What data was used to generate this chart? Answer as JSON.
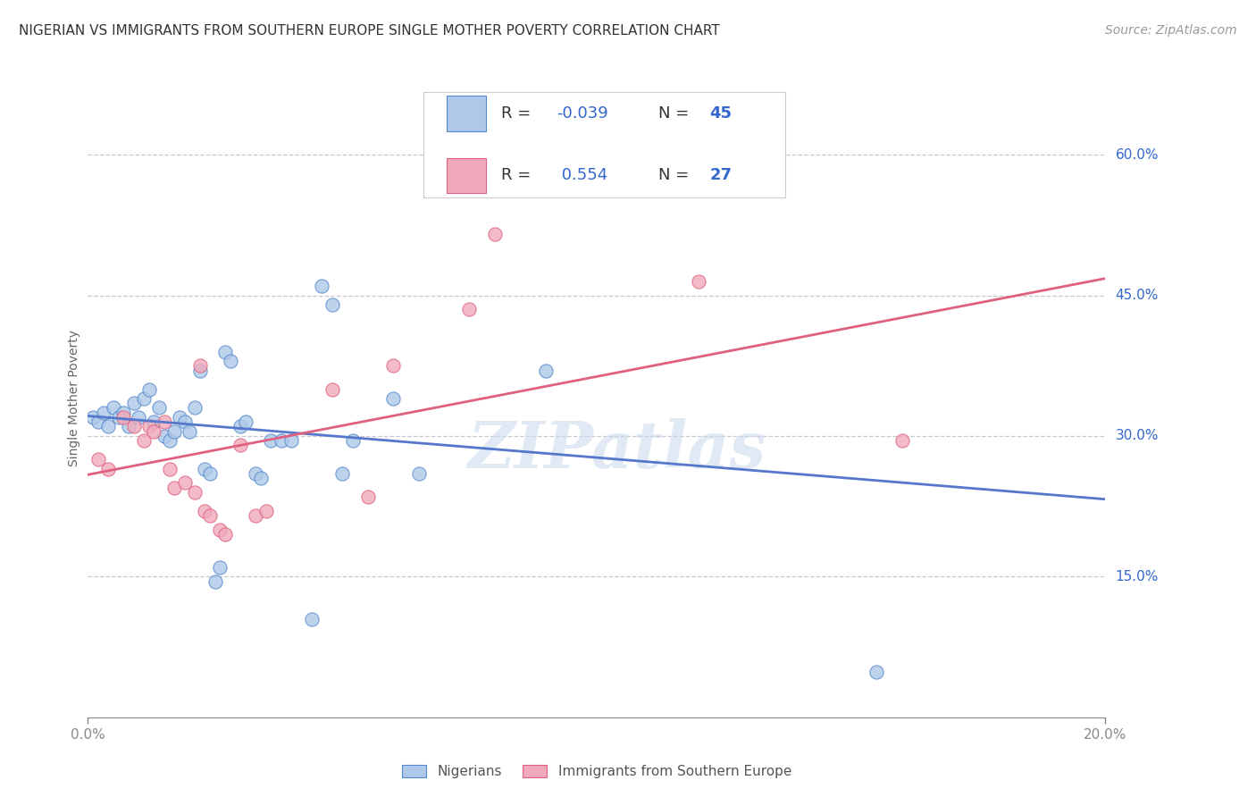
{
  "title": "NIGERIAN VS IMMIGRANTS FROM SOUTHERN EUROPE SINGLE MOTHER POVERTY CORRELATION CHART",
  "source": "Source: ZipAtlas.com",
  "ylabel": "Single Mother Poverty",
  "ytick_vals": [
    0.15,
    0.3,
    0.45,
    0.6
  ],
  "ytick_labels": [
    "15.0%",
    "30.0%",
    "45.0%",
    "60.0%"
  ],
  "xtick_vals": [
    0.0,
    0.2
  ],
  "xtick_labels": [
    "0.0%",
    "20.0%"
  ],
  "xlim": [
    0.0,
    0.2
  ],
  "ylim": [
    0.0,
    0.68
  ],
  "blue_R": "-0.039",
  "blue_N": "45",
  "pink_R": "0.554",
  "pink_N": "27",
  "legend_label1": "Nigerians",
  "legend_label2": "Immigrants from Southern Europe",
  "watermark": "ZIPatlas",
  "blue_fill": "#adc8e8",
  "pink_fill": "#f0aabb",
  "blue_edge": "#5588cc",
  "pink_edge": "#e06080",
  "line_blue": "#5577cc",
  "line_pink": "#e06080",
  "blue_scatter": [
    [
      0.001,
      0.32
    ],
    [
      0.002,
      0.315
    ],
    [
      0.003,
      0.325
    ],
    [
      0.004,
      0.31
    ],
    [
      0.005,
      0.33
    ],
    [
      0.006,
      0.32
    ],
    [
      0.007,
      0.325
    ],
    [
      0.008,
      0.31
    ],
    [
      0.009,
      0.335
    ],
    [
      0.01,
      0.32
    ],
    [
      0.011,
      0.34
    ],
    [
      0.012,
      0.35
    ],
    [
      0.013,
      0.315
    ],
    [
      0.014,
      0.33
    ],
    [
      0.015,
      0.3
    ],
    [
      0.016,
      0.295
    ],
    [
      0.017,
      0.305
    ],
    [
      0.018,
      0.32
    ],
    [
      0.019,
      0.315
    ],
    [
      0.02,
      0.305
    ],
    [
      0.021,
      0.33
    ],
    [
      0.022,
      0.37
    ],
    [
      0.023,
      0.265
    ],
    [
      0.024,
      0.26
    ],
    [
      0.025,
      0.145
    ],
    [
      0.026,
      0.16
    ],
    [
      0.027,
      0.39
    ],
    [
      0.028,
      0.38
    ],
    [
      0.03,
      0.31
    ],
    [
      0.031,
      0.315
    ],
    [
      0.033,
      0.26
    ],
    [
      0.034,
      0.255
    ],
    [
      0.036,
      0.295
    ],
    [
      0.038,
      0.295
    ],
    [
      0.04,
      0.295
    ],
    [
      0.044,
      0.105
    ],
    [
      0.046,
      0.46
    ],
    [
      0.048,
      0.44
    ],
    [
      0.05,
      0.26
    ],
    [
      0.052,
      0.295
    ],
    [
      0.06,
      0.34
    ],
    [
      0.065,
      0.26
    ],
    [
      0.09,
      0.37
    ],
    [
      0.095,
      0.575
    ],
    [
      0.155,
      0.048
    ]
  ],
  "pink_scatter": [
    [
      0.002,
      0.275
    ],
    [
      0.004,
      0.265
    ],
    [
      0.007,
      0.32
    ],
    [
      0.009,
      0.31
    ],
    [
      0.011,
      0.295
    ],
    [
      0.012,
      0.31
    ],
    [
      0.013,
      0.305
    ],
    [
      0.015,
      0.315
    ],
    [
      0.016,
      0.265
    ],
    [
      0.017,
      0.245
    ],
    [
      0.019,
      0.25
    ],
    [
      0.021,
      0.24
    ],
    [
      0.022,
      0.375
    ],
    [
      0.023,
      0.22
    ],
    [
      0.024,
      0.215
    ],
    [
      0.026,
      0.2
    ],
    [
      0.027,
      0.195
    ],
    [
      0.03,
      0.29
    ],
    [
      0.033,
      0.215
    ],
    [
      0.035,
      0.22
    ],
    [
      0.048,
      0.35
    ],
    [
      0.055,
      0.235
    ],
    [
      0.06,
      0.375
    ],
    [
      0.075,
      0.435
    ],
    [
      0.08,
      0.515
    ],
    [
      0.12,
      0.465
    ],
    [
      0.16,
      0.295
    ]
  ],
  "title_fontsize": 11,
  "axis_label_fontsize": 10,
  "tick_fontsize": 11,
  "source_fontsize": 10,
  "legend_fontsize": 13,
  "watermark_fontsize": 52,
  "background_color": "#ffffff",
  "grid_color": "#c8c8d0",
  "text_blue": "#3366cc",
  "axis_color": "#888888"
}
